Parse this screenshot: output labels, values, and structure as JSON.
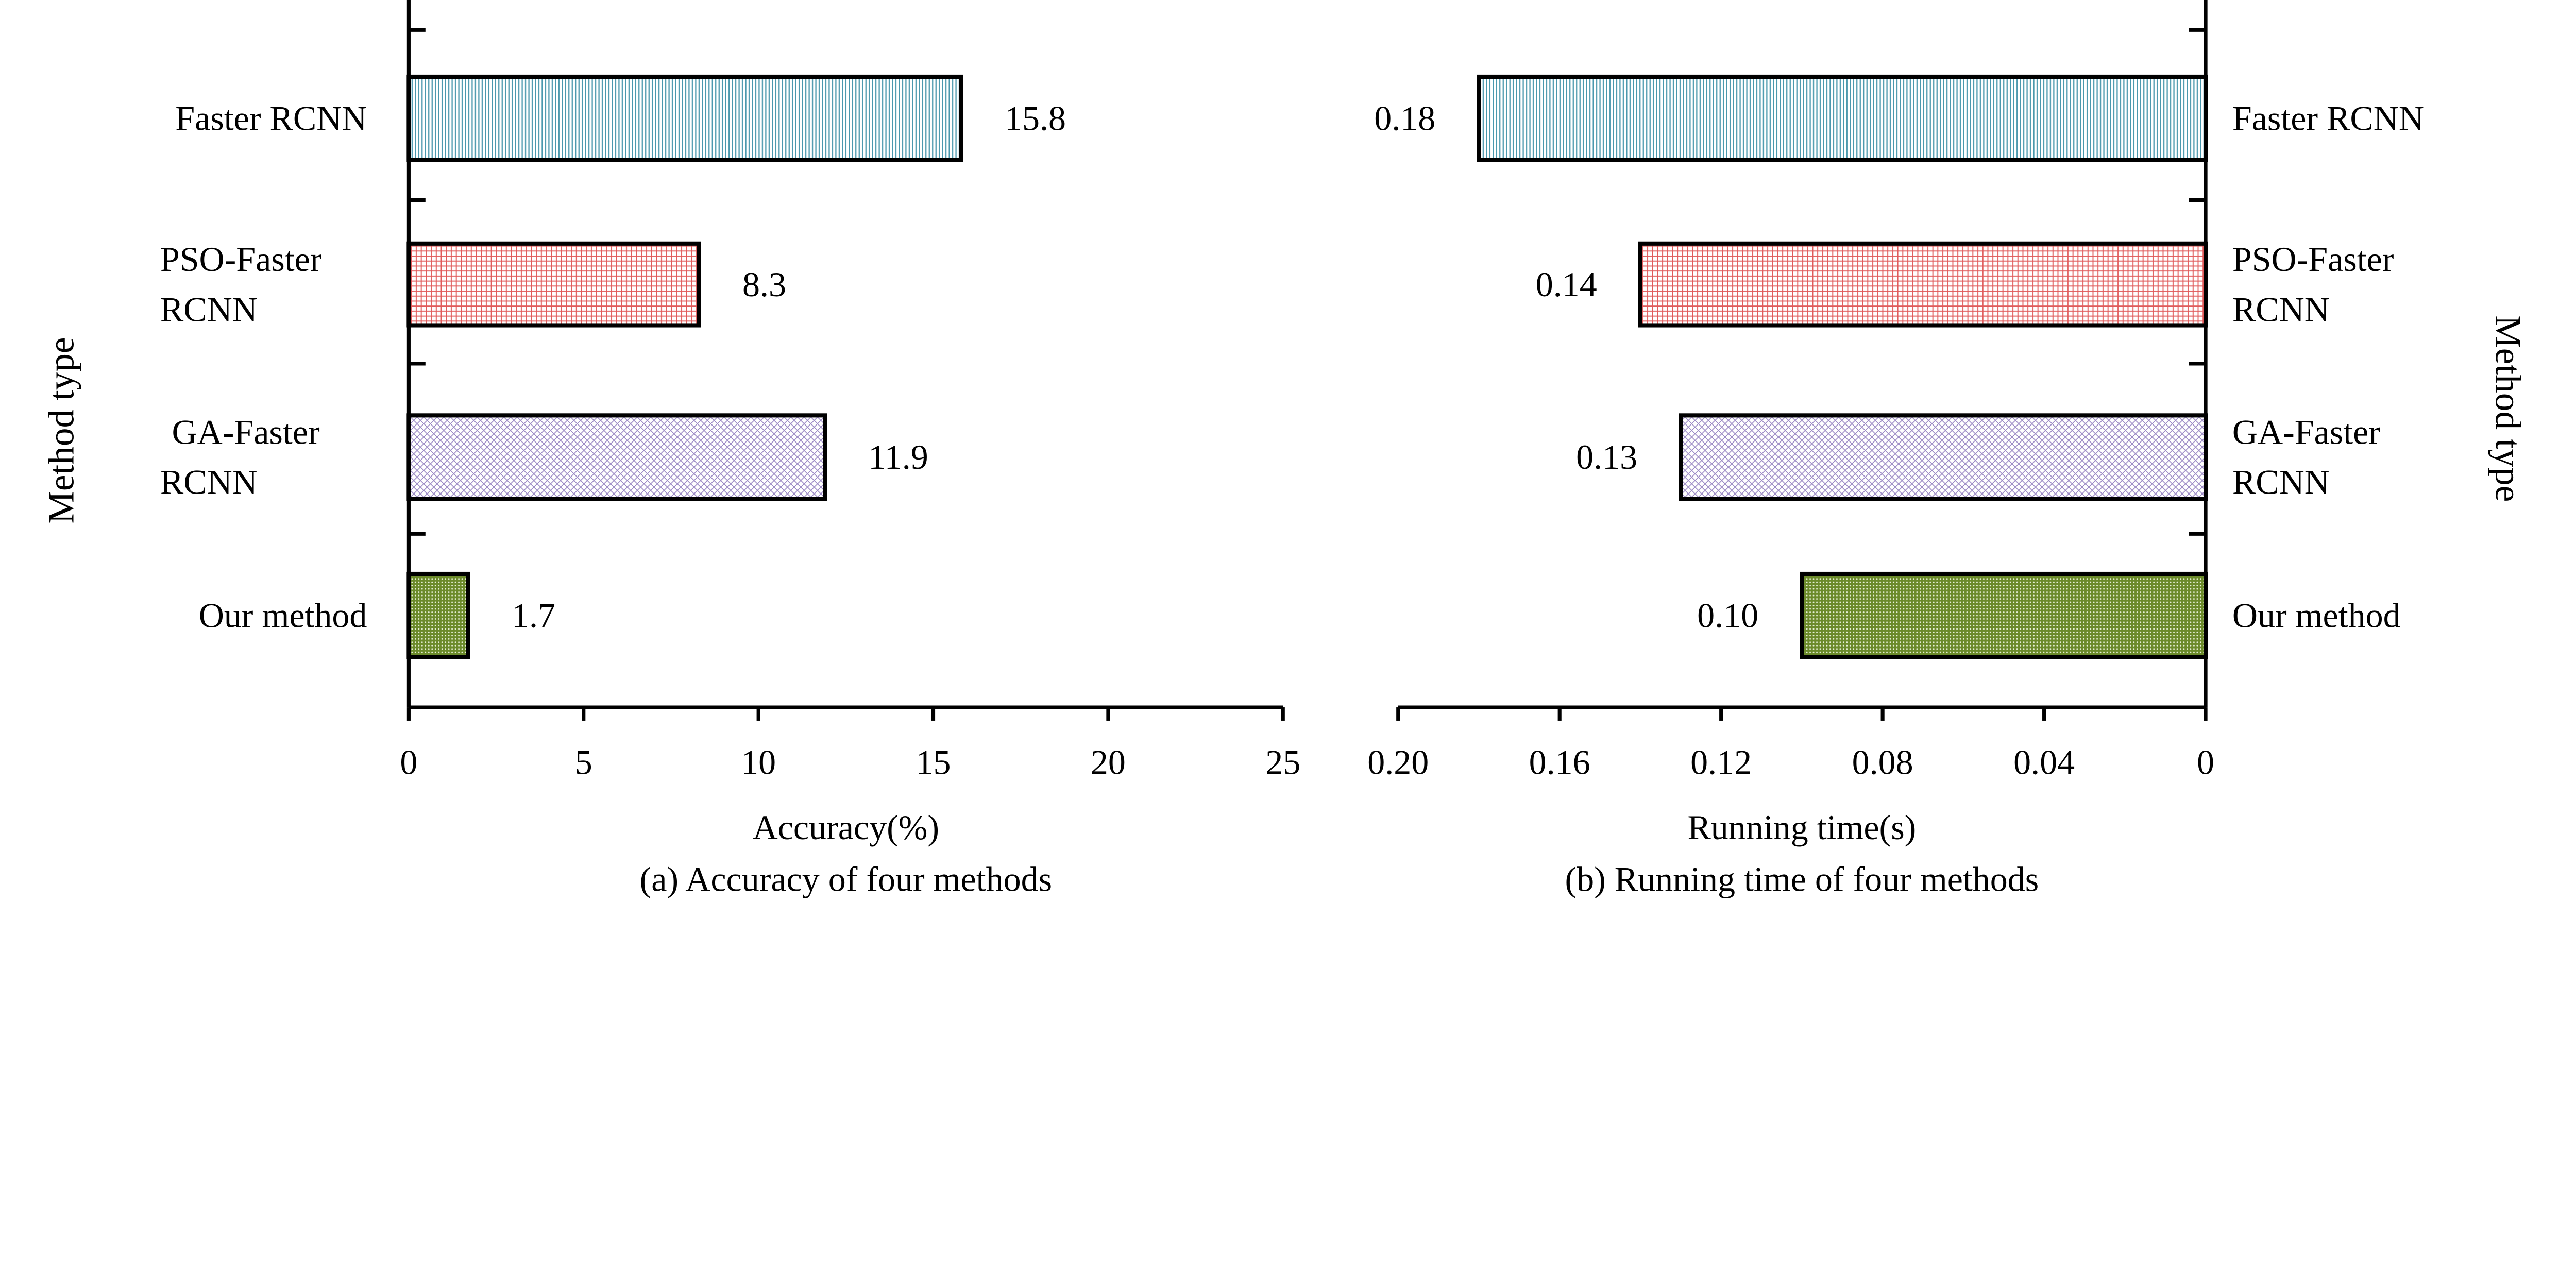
{
  "chart_data": [
    {
      "type": "bar",
      "orientation": "horizontal",
      "categories": [
        "Faster RCNN",
        "PSO-Faster RCNN",
        "GA-Faster RCNN",
        "Our method"
      ],
      "category_lines": [
        [
          "Faster RCNN"
        ],
        [
          "PSO-Faster",
          "RCNN"
        ],
        [
          "GA-Faster",
          "RCNN"
        ],
        [
          "Our method"
        ]
      ],
      "values": [
        15.8,
        8.3,
        11.9,
        1.7
      ],
      "value_labels": [
        "15.8",
        "8.3",
        "11.9",
        "1.7"
      ],
      "xlabel": "Accuracy(%)",
      "ylabel": "Method type",
      "caption": "(a) Accuracy of four methods",
      "xlim": [
        0,
        25
      ],
      "xticks": [
        0,
        5,
        10,
        15,
        20,
        25
      ],
      "xtick_labels": [
        "0",
        "5",
        "10",
        "15",
        "20",
        "25"
      ],
      "x_reversed": false,
      "grid": false
    },
    {
      "type": "bar",
      "orientation": "horizontal",
      "categories": [
        "Faster RCNN",
        "PSO-Faster RCNN",
        "GA-Faster RCNN",
        "Our method"
      ],
      "category_lines": [
        [
          "Faster RCNN"
        ],
        [
          "PSO-Faster",
          "RCNN"
        ],
        [
          "GA-Faster",
          "RCNN"
        ],
        [
          "Our method"
        ]
      ],
      "values": [
        0.18,
        0.14,
        0.13,
        0.1
      ],
      "value_labels": [
        "0.18",
        "0.14",
        "0.13",
        "0.10"
      ],
      "xlabel": "Running time(s)",
      "ylabel": "Method type",
      "caption": "(b) Running time of four methods",
      "xlim": [
        0,
        0.2
      ],
      "xticks": [
        0.2,
        0.16,
        0.12,
        0.08,
        0.04,
        0
      ],
      "xtick_labels": [
        "0.20",
        "0.16",
        "0.12",
        "0.08",
        "0.04",
        "0"
      ],
      "x_reversed": true,
      "grid": false
    }
  ],
  "colors": {
    "faster_rcnn": "#4a98ad",
    "pso_faster_rcnn": "#e05a5a",
    "ga_faster_rcnn": "#9a88c4",
    "our_method": "#6b8a2a"
  }
}
